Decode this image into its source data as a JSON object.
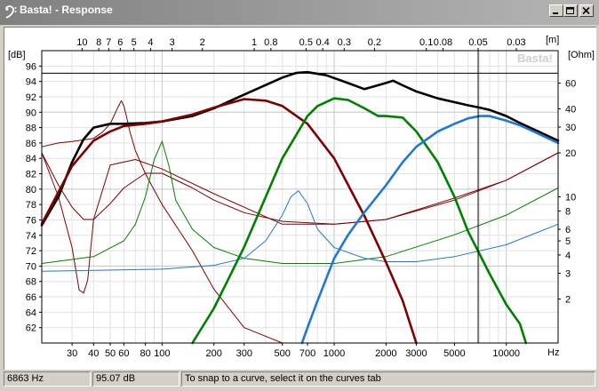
{
  "window": {
    "title": "Basta! - Response",
    "controls": [
      "minimize",
      "maximize",
      "close"
    ]
  },
  "chart": {
    "watermark": "Basta!",
    "left_unit": "[dB]",
    "right_unit": "[Ohm]",
    "top_unit": "[m]",
    "bottom_unit": "Hz"
  },
  "status": {
    "frequency": "6863 Hz",
    "level": "95.07 dB",
    "hint": "To snap to a curve, select it on the curves tab"
  },
  "colors": {
    "total": "#000000",
    "woofer": "#800000",
    "mid": "#008000",
    "tweeter": "#1e78d4",
    "cursor": "#000000"
  },
  "chart_data": {
    "type": "line",
    "x_scale": "log",
    "xlim": [
      20,
      20000
    ],
    "ylim": [
      60,
      98
    ],
    "y2lim": [
      1,
      100
    ],
    "y2_scale": "log",
    "grid": true,
    "x_ticks": [
      30,
      40,
      50,
      60,
      80,
      100,
      200,
      300,
      500,
      700,
      1000,
      2000,
      3000,
      5000,
      10000
    ],
    "y_ticks": [
      62,
      64,
      66,
      68,
      70,
      72,
      74,
      76,
      78,
      80,
      82,
      84,
      86,
      88,
      90,
      92,
      94,
      96
    ],
    "y2_ticks": [
      2,
      3,
      4,
      5,
      6,
      8,
      10,
      20,
      30,
      40,
      60
    ],
    "top_ticks": [
      "10",
      "8",
      "7",
      "6",
      "5",
      "4",
      "3",
      "2",
      "1",
      "0.8",
      "0.5",
      "0.4",
      "0.3",
      "0.2",
      "0.1",
      "0.08",
      "0.05",
      "0.03"
    ],
    "cursor": {
      "x": 6863,
      "y": 95.07
    },
    "series": [
      {
        "key": "total",
        "axis": "left",
        "width": 2.6,
        "x": [
          20,
          25,
          30,
          35,
          40,
          50,
          60,
          80,
          100,
          150,
          200,
          300,
          500,
          600,
          700,
          900,
          1200,
          1500,
          2000,
          2200,
          2500,
          3000,
          4000,
          5000,
          6000,
          7000,
          8000,
          10000,
          12000,
          15000,
          20000
        ],
        "y": [
          75.3,
          79,
          83.5,
          86.5,
          88,
          88.5,
          88.5,
          88.6,
          88.8,
          89.5,
          90.5,
          92.3,
          94.5,
          95.1,
          95.2,
          94.8,
          93.8,
          93,
          93.8,
          94.1,
          93.5,
          92.7,
          91.8,
          91.3,
          90.9,
          90.6,
          90.3,
          89.5,
          88.6,
          87.6,
          86.3
        ]
      },
      {
        "key": "woofer",
        "axis": "left",
        "width": 2.6,
        "x": [
          20,
          30,
          40,
          50,
          60,
          80,
          100,
          150,
          200,
          300,
          400,
          500,
          700,
          1000,
          1500,
          2000,
          2500,
          3000
        ],
        "y": [
          75.5,
          83,
          86.3,
          87.5,
          88.2,
          88.5,
          88.8,
          89.7,
          90.6,
          91.7,
          91.5,
          90.8,
          88.5,
          84,
          76.5,
          70.5,
          65.5,
          60
        ]
      },
      {
        "key": "mid",
        "axis": "left",
        "width": 2.6,
        "x": [
          150,
          200,
          300,
          400,
          500,
          700,
          800,
          1000,
          1200,
          1500,
          1800,
          2000,
          2500,
          3000,
          4000,
          5000,
          6000,
          8000,
          10000,
          12000,
          13000
        ],
        "y": [
          60,
          64.5,
          72.5,
          79,
          84,
          89.5,
          90.8,
          91.8,
          91.6,
          90.5,
          89.5,
          89.5,
          89.3,
          87.5,
          83.5,
          79,
          74.5,
          69,
          65,
          62.5,
          60
        ]
      },
      {
        "key": "tweeter",
        "axis": "left",
        "width": 2.6,
        "x": [
          650,
          700,
          800,
          1000,
          1200,
          1500,
          2000,
          2500,
          3000,
          4000,
          5000,
          6000,
          7000,
          8000,
          10000,
          12000,
          15000,
          20000
        ],
        "y": [
          60,
          62,
          65.5,
          71,
          74,
          77,
          80.5,
          83.5,
          85.5,
          87.5,
          88.5,
          89.2,
          89.5,
          89.5,
          88.9,
          88.3,
          87.3,
          86
        ]
      },
      {
        "key": "woofer",
        "axis": "left",
        "width": 1,
        "x": [
          20,
          25,
          30,
          35,
          40,
          45,
          50,
          55,
          58,
          60,
          62,
          65,
          70,
          80,
          100,
          150,
          200,
          300,
          500,
          1000
        ],
        "y": [
          85.5,
          86,
          86.2,
          86.4,
          86.6,
          87.4,
          88.5,
          90.5,
          91.5,
          90.8,
          89.5,
          87.5,
          85,
          82,
          78,
          72,
          67,
          62,
          60,
          60
        ]
      },
      {
        "key": "woofer",
        "axis": "right",
        "width": 1,
        "x": [
          20,
          25,
          30,
          33,
          35,
          37,
          40,
          50,
          70,
          100,
          200,
          500,
          1000,
          2000,
          5000,
          10000,
          20000
        ],
        "y": [
          20,
          10,
          4.5,
          2.3,
          2.2,
          2.7,
          7,
          16.5,
          18,
          15.5,
          10.5,
          6.5,
          6.5,
          7,
          9.5,
          13,
          20
        ]
      },
      {
        "key": "woofer",
        "axis": "right",
        "width": 1,
        "x": [
          20,
          25,
          30,
          35,
          40,
          50,
          60,
          80,
          100,
          150,
          200,
          300,
          500,
          1000,
          2000,
          5000,
          10000,
          20000
        ],
        "y": [
          20,
          12,
          8.5,
          7,
          7,
          9,
          11.5,
          14.5,
          14.5,
          11.5,
          9.5,
          7.8,
          6.8,
          6.5,
          7,
          9.8,
          13,
          20
        ]
      },
      {
        "key": "mid",
        "axis": "right",
        "width": 1,
        "x": [
          20,
          40,
          60,
          70,
          80,
          90,
          100,
          110,
          120,
          150,
          200,
          300,
          500,
          1000,
          2000,
          5000,
          10000,
          20000
        ],
        "y": [
          3.5,
          3.9,
          5,
          6.5,
          10,
          18,
          24,
          16,
          9.5,
          6,
          4.5,
          3.8,
          3.5,
          3.5,
          3.9,
          5.5,
          7.5,
          11.5
        ]
      },
      {
        "key": "tweeter",
        "axis": "right",
        "width": 1,
        "x": [
          20,
          100,
          200,
          300,
          400,
          500,
          560,
          620,
          700,
          800,
          1000,
          1500,
          2000,
          3000,
          5000,
          10000,
          20000
        ],
        "y": [
          3.1,
          3.2,
          3.4,
          3.8,
          5,
          7.5,
          10,
          11,
          9,
          6,
          4.5,
          3.8,
          3.6,
          3.6,
          3.9,
          4.7,
          6.5
        ]
      }
    ]
  }
}
